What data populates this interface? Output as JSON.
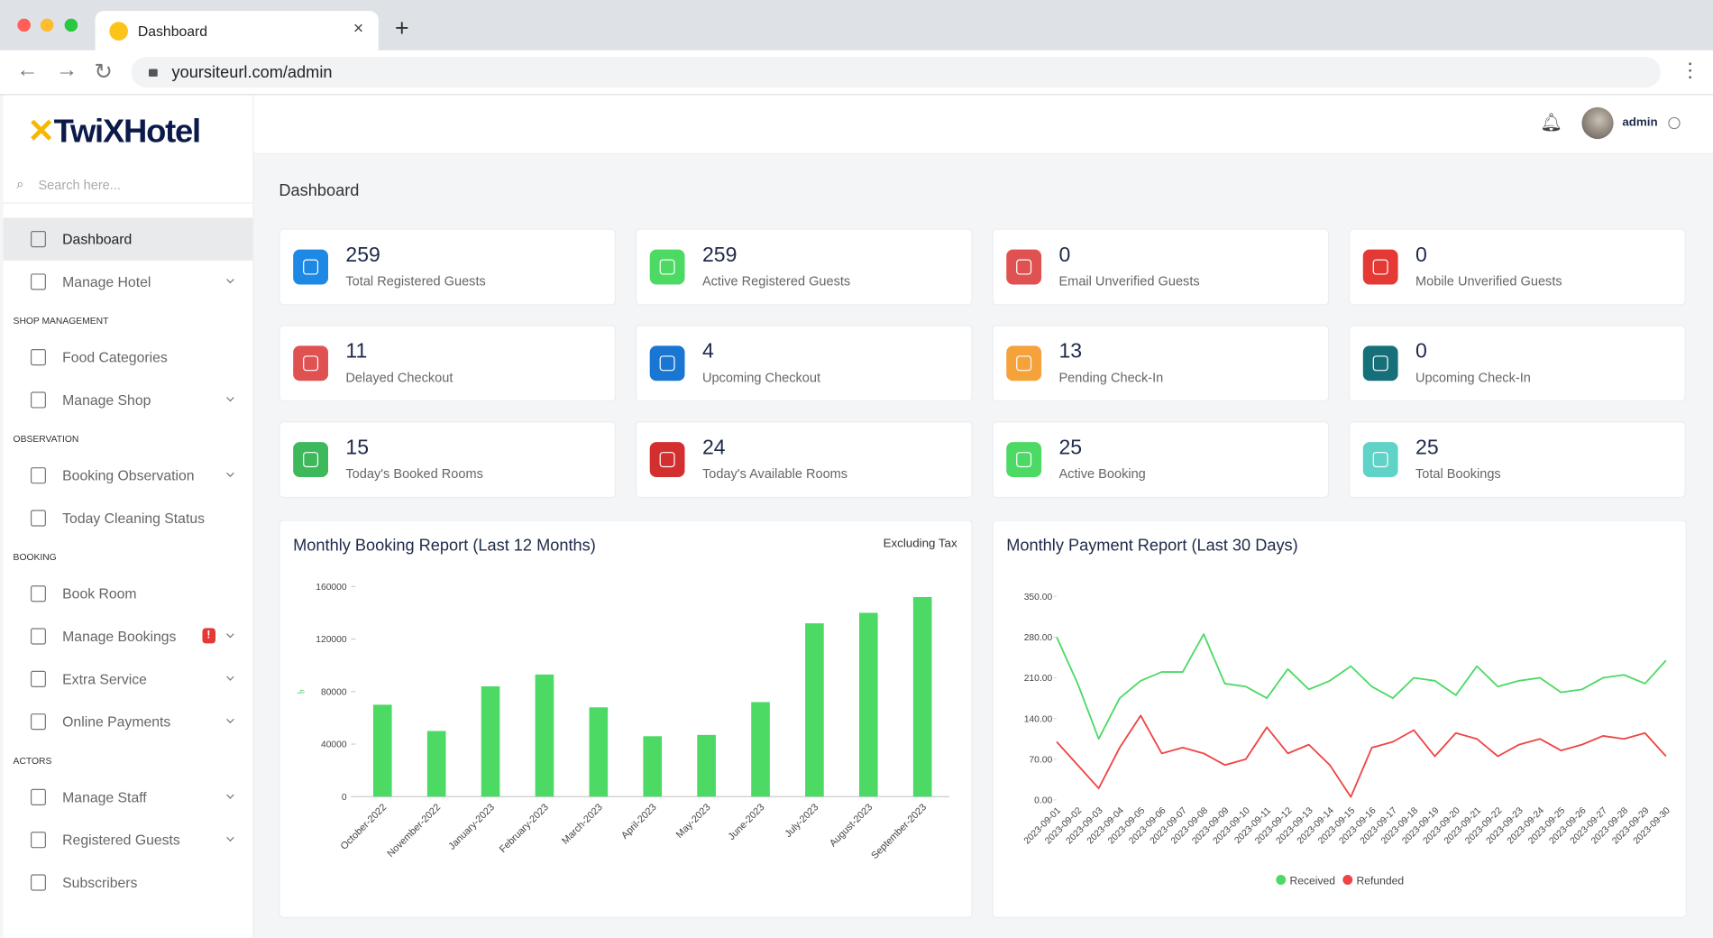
{
  "browser": {
    "tab_title": "Dashboard",
    "url": "yoursiteurl.com/admin"
  },
  "sidebar": {
    "logo": "TwiXHotel",
    "search_placeholder": "Search here...",
    "groups": [
      {
        "items": [
          {
            "label": "Dashboard",
            "active": true
          },
          {
            "label": "Manage Hotel",
            "dropdown": true
          }
        ]
      },
      {
        "heading": "SHOP MANAGEMENT",
        "items": [
          {
            "label": "Food Categories"
          },
          {
            "label": "Manage Shop",
            "dropdown": true
          }
        ]
      },
      {
        "heading": "OBSERVATION",
        "items": [
          {
            "label": "Booking Observation",
            "dropdown": true
          },
          {
            "label": "Today Cleaning Status"
          }
        ]
      },
      {
        "heading": "BOOKING",
        "items": [
          {
            "label": "Book Room"
          },
          {
            "label": "Manage Bookings",
            "dropdown": true,
            "badge": "!"
          },
          {
            "label": "Extra Service",
            "dropdown": true
          },
          {
            "label": "Online Payments",
            "dropdown": true
          }
        ]
      },
      {
        "heading": "ACTORS",
        "items": [
          {
            "label": "Manage Staff",
            "dropdown": true
          },
          {
            "label": "Registered Guests",
            "dropdown": true
          },
          {
            "label": "Subscribers"
          }
        ]
      }
    ]
  },
  "header": {
    "user": "admin"
  },
  "page_title": "Dashboard",
  "stats": [
    {
      "value": 259,
      "label": "Total Registered Guests",
      "color": "#1e88e5"
    },
    {
      "value": 259,
      "label": "Active Registered Guests",
      "color": "#4cd964"
    },
    {
      "value": 0,
      "label": "Email Unverified Guests",
      "color": "#e05252"
    },
    {
      "value": 0,
      "label": "Mobile Unverified Guests",
      "color": "#e53935"
    },
    {
      "value": 11,
      "label": "Delayed Checkout",
      "color": "#e05252"
    },
    {
      "value": 4,
      "label": "Upcoming Checkout",
      "color": "#1976d2"
    },
    {
      "value": 13,
      "label": "Pending Check-In",
      "color": "#f5a23a"
    },
    {
      "value": 0,
      "label": "Upcoming Check-In",
      "color": "#16707a"
    },
    {
      "value": 15,
      "label": "Today's Booked Rooms",
      "color": "#3db85a"
    },
    {
      "value": 24,
      "label": "Today's Available Rooms",
      "color": "#d32f2f"
    },
    {
      "value": 25,
      "label": "Active Booking",
      "color": "#4cd964"
    },
    {
      "value": 25,
      "label": "Total Bookings",
      "color": "#5fd3c7"
    }
  ],
  "charts": [
    {
      "type": "bar",
      "title": "Monthly Booking Report (Last 12 Months)",
      "note": "Excluding Tax",
      "y_label": "৳",
      "categories": [
        "October-2022",
        "November-2022",
        "January-2023",
        "February-2023",
        "March-2023",
        "April-2023",
        "May-2023",
        "June-2023",
        "July-2023",
        "August-2023",
        "September-2023"
      ],
      "values": [
        70000,
        50000,
        84000,
        93000,
        68000,
        46000,
        47000,
        72000,
        132000,
        140000,
        152000
      ],
      "color": "#4cd964",
      "ylim": [
        0,
        160000
      ],
      "yticks": [
        0,
        40000,
        80000,
        120000,
        160000
      ]
    },
    {
      "type": "line",
      "title": "Monthly Payment Report (Last 30 Days)",
      "x": [
        "2023-09-01",
        "2023-09-02",
        "2023-09-03",
        "2023-09-04",
        "2023-09-05",
        "2023-09-06",
        "2023-09-07",
        "2023-09-08",
        "2023-09-09",
        "2023-09-10",
        "2023-09-11",
        "2023-09-12",
        "2023-09-13",
        "2023-09-14",
        "2023-09-15",
        "2023-09-16",
        "2023-09-17",
        "2023-09-18",
        "2023-09-19",
        "2023-09-20",
        "2023-09-21",
        "2023-09-22",
        "2023-09-23",
        "2023-09-24",
        "2023-09-25",
        "2023-09-26",
        "2023-09-27",
        "2023-09-28",
        "2023-09-29",
        "2023-09-30"
      ],
      "series": [
        {
          "name": "Received",
          "color": "#4cd964",
          "values": [
            280,
            200,
            105,
            175,
            205,
            220,
            220,
            285,
            200,
            195,
            175,
            225,
            190,
            205,
            230,
            195,
            175,
            210,
            205,
            180,
            230,
            195,
            205,
            210,
            185,
            190,
            210,
            215,
            200,
            240
          ]
        },
        {
          "name": "Refunded",
          "color": "#ef4444",
          "values": [
            100,
            60,
            20,
            90,
            145,
            80,
            90,
            80,
            60,
            70,
            125,
            80,
            95,
            60,
            5,
            90,
            100,
            120,
            75,
            115,
            105,
            75,
            95,
            105,
            85,
            95,
            110,
            105,
            115,
            75
          ]
        }
      ],
      "ylim": [
        0,
        350
      ],
      "yticks": [
        {
          "value": 0,
          "label": "0.00"
        },
        {
          "value": 70,
          "label": "70.00"
        },
        {
          "value": 140,
          "label": "140.00"
        },
        {
          "value": 210,
          "label": "210.00"
        },
        {
          "value": 280,
          "label": "280.00"
        },
        {
          "value": 350,
          "label": "350.00"
        }
      ]
    }
  ]
}
